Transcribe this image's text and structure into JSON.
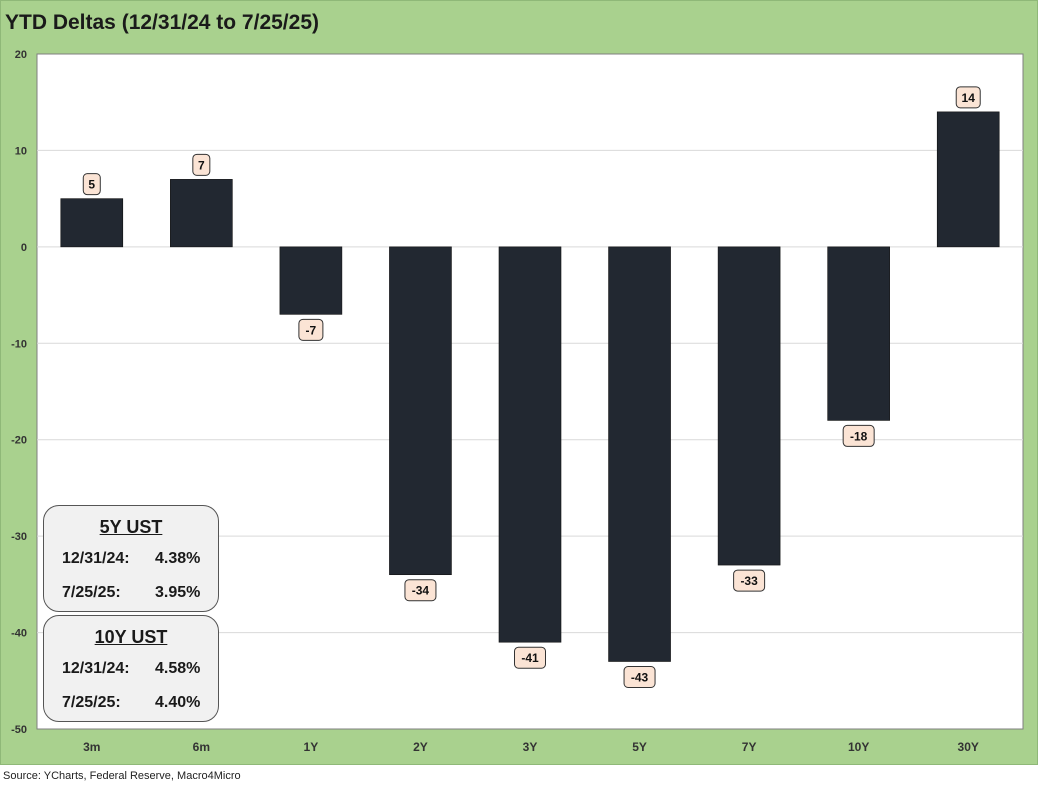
{
  "title": "YTD Deltas (12/31/24 to 7/25/25)",
  "source": "Source: YCharts, Federal Reserve, Macro4Micro",
  "colors": {
    "frame": "#a9d18e",
    "bar": "#222831",
    "label_fill": "#fbe4d5",
    "grid": "#d9d9d9"
  },
  "chart_data": {
    "type": "bar",
    "title": "YTD Deltas (12/31/24 to 7/25/25)",
    "categories": [
      "3m",
      "6m",
      "1Y",
      "2Y",
      "3Y",
      "5Y",
      "7Y",
      "10Y",
      "30Y"
    ],
    "values": [
      5,
      7,
      -7,
      -34,
      -41,
      -43,
      -33,
      -18,
      14
    ],
    "data_labels": [
      "5",
      "7",
      "-7",
      "-34",
      "-41",
      "-43",
      "-33",
      "-18",
      "14"
    ],
    "ylim": [
      -50,
      20
    ],
    "yticks": [
      20,
      10,
      0,
      -10,
      -20,
      -30,
      -40,
      -50
    ],
    "xlabel": "",
    "ylabel": "",
    "grid": true,
    "legend": "none"
  },
  "info_boxes": [
    {
      "header": "5Y UST",
      "rows": [
        {
          "label": "12/31/24:",
          "value": "4.38%"
        },
        {
          "label": "7/25/25:",
          "value": "3.95%"
        }
      ]
    },
    {
      "header": "10Y UST",
      "rows": [
        {
          "label": "12/31/24:",
          "value": "4.58%"
        },
        {
          "label": "7/25/25:",
          "value": "4.40%"
        }
      ]
    }
  ]
}
